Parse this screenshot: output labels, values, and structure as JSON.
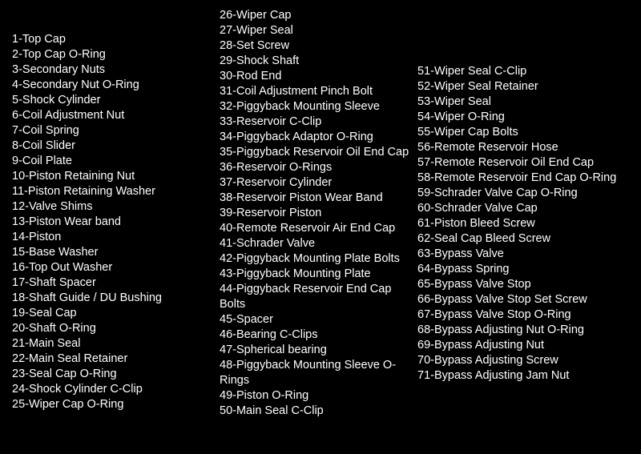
{
  "background_color": "#000000",
  "text_color": "#ffffff",
  "font_size": 14.5,
  "line_height": 19,
  "columns": {
    "col1": [
      "1-Top Cap",
      "2-Top Cap O-Ring",
      "3-Secondary Nuts",
      "4-Secondary Nut O-Ring",
      "5-Shock Cylinder",
      "6-Coil Adjustment Nut",
      "7-Coil Spring",
      "8-Coil Slider",
      "9-Coil Plate",
      "10-Piston Retaining Nut",
      "11-Piston Retaining Washer",
      "12-Valve Shims",
      "13-Piston Wear band",
      "14-Piston",
      "15-Base Washer",
      "16-Top Out Washer",
      "17-Shaft Spacer",
      "18-Shaft Guide / DU Bushing",
      "19-Seal Cap",
      "20-Shaft O-Ring",
      "21-Main Seal",
      "22-Main Seal Retainer",
      "23-Seal Cap O-Ring",
      "24-Shock Cylinder C-Clip",
      "25-Wiper Cap O-Ring"
    ],
    "col2": [
      "26-Wiper Cap",
      "27-Wiper Seal",
      "28-Set Screw",
      "29-Shock Shaft",
      "30-Rod End",
      "31-Coil Adjustment Pinch Bolt",
      "32-Piggyback Mounting Sleeve",
      "33-Reservoir C-Clip",
      "34-Piggyback Adaptor O-Ring",
      "35-Piggyback Reservoir Oil End Cap",
      "36-Reservoir O-Rings",
      "37-Reservoir Cylinder",
      "38-Reservoir Piston Wear Band",
      "39-Reservoir Piston",
      "40-Remote Reservoir Air End Cap",
      "41-Schrader Valve",
      "42-Piggyback Mounting Plate Bolts",
      "43-Piggyback Mounting Plate",
      "44-Piggyback Reservoir End Cap Bolts",
      "45-Spacer",
      "46-Bearing C-Clips",
      "47-Spherical bearing",
      "48-Piggyback Mounting Sleeve O-Rings",
      "49-Piston O-Ring",
      "50-Main Seal C-Clip"
    ],
    "col3": [
      "51-Wiper Seal C-Clip",
      "52-Wiper Seal Retainer",
      "53-Wiper Seal",
      "54-Wiper O-Ring",
      "55-Wiper Cap Bolts",
      "56-Remote Reservoir Hose",
      "57-Remote Reservoir Oil End Cap",
      "58-Remote Reservoir End Cap O-Ring",
      "59-Schrader Valve Cap O-Ring",
      "60-Schrader Valve Cap",
      "61-Piston Bleed Screw",
      "62-Seal Cap Bleed Screw",
      "63-Bypass Valve",
      "64-Bypass Spring",
      "65-Bypass Valve Stop",
      "66-Bypass Valve Stop Set Screw",
      "67-Bypass Valve Stop O-Ring",
      "68-Bypass Adjusting Nut O-Ring",
      "69-Bypass Adjusting Nut",
      "70-Bypass Adjusting Screw",
      "71-Bypass Adjusting Jam Nut"
    ]
  }
}
